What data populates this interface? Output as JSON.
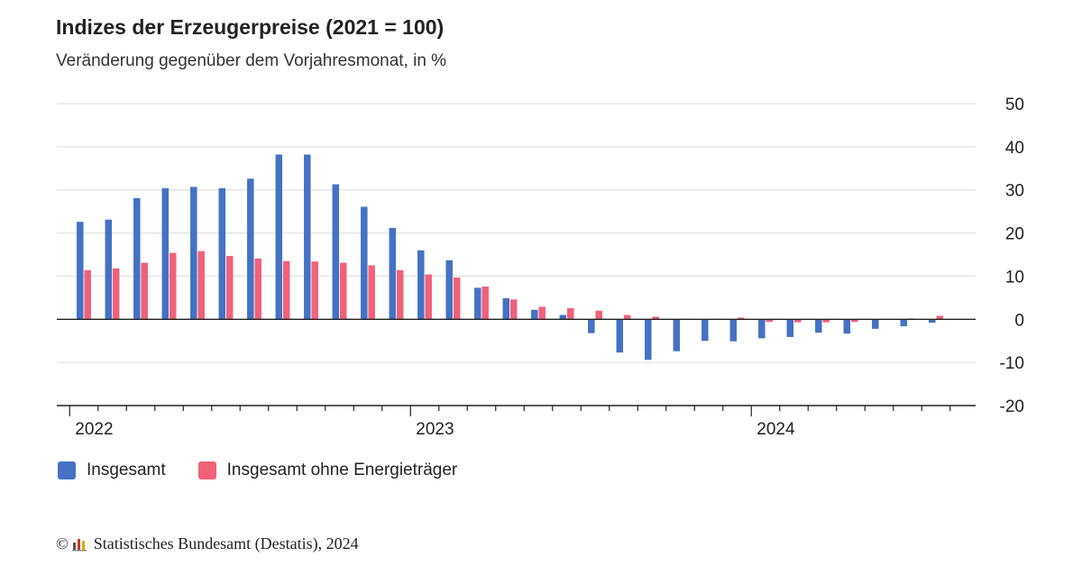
{
  "header": {
    "title": "Indizes der Erzeugerpreise (2021 = 100)",
    "subtitle": "Veränderung gegenüber dem Vorjahresmonat, in %"
  },
  "footer": {
    "copyright_symbol": "©",
    "source": "Statistisches Bundesamt (Destatis), 2024"
  },
  "colors": {
    "series1": "#4472c4",
    "series2": "#f0617a"
  },
  "chart_data": {
    "type": "bar",
    "x": [
      "2022-01",
      "2022-02",
      "2022-03",
      "2022-04",
      "2022-05",
      "2022-06",
      "2022-07",
      "2022-08",
      "2022-09",
      "2022-10",
      "2022-11",
      "2022-12",
      "2023-01",
      "2023-02",
      "2023-03",
      "2023-04",
      "2023-05",
      "2023-06",
      "2023-07",
      "2023-08",
      "2023-09",
      "2023-10",
      "2023-11",
      "2023-12",
      "2024-01",
      "2024-02",
      "2024-03",
      "2024-04",
      "2024-05",
      "2024-06",
      "2024-07"
    ],
    "x_tick_labels": [
      "2022",
      "2023",
      "2024"
    ],
    "ylim": [
      -20,
      50
    ],
    "y_ticks": [
      -20,
      -10,
      0,
      10,
      20,
      30,
      40,
      50
    ],
    "y_axis_side": "right",
    "grid": true,
    "legend_position": "bottom-left",
    "series": [
      {
        "name": "Insgesamt",
        "values": [
          22.6,
          23.1,
          28.1,
          30.4,
          30.7,
          30.4,
          32.6,
          38.2,
          38.2,
          31.3,
          26.1,
          21.2,
          16.0,
          13.7,
          7.3,
          4.9,
          2.2,
          1.0,
          -3.2,
          -7.7,
          -9.4,
          -7.4,
          -5.0,
          -5.1,
          -4.4,
          -4.1,
          -3.1,
          -3.3,
          -2.2,
          -1.6,
          -0.8
        ]
      },
      {
        "name": "Insgesamt ohne Energieträger",
        "values": [
          11.4,
          11.8,
          13.1,
          15.4,
          15.8,
          14.7,
          14.1,
          13.5,
          13.4,
          13.1,
          12.5,
          11.4,
          10.4,
          9.7,
          7.6,
          4.6,
          2.9,
          2.6,
          2.0,
          1.0,
          0.6,
          0.1,
          0.1,
          0.4,
          -0.6,
          -0.7,
          -0.7,
          -0.6,
          0.0,
          0.2,
          0.8
        ]
      }
    ]
  }
}
